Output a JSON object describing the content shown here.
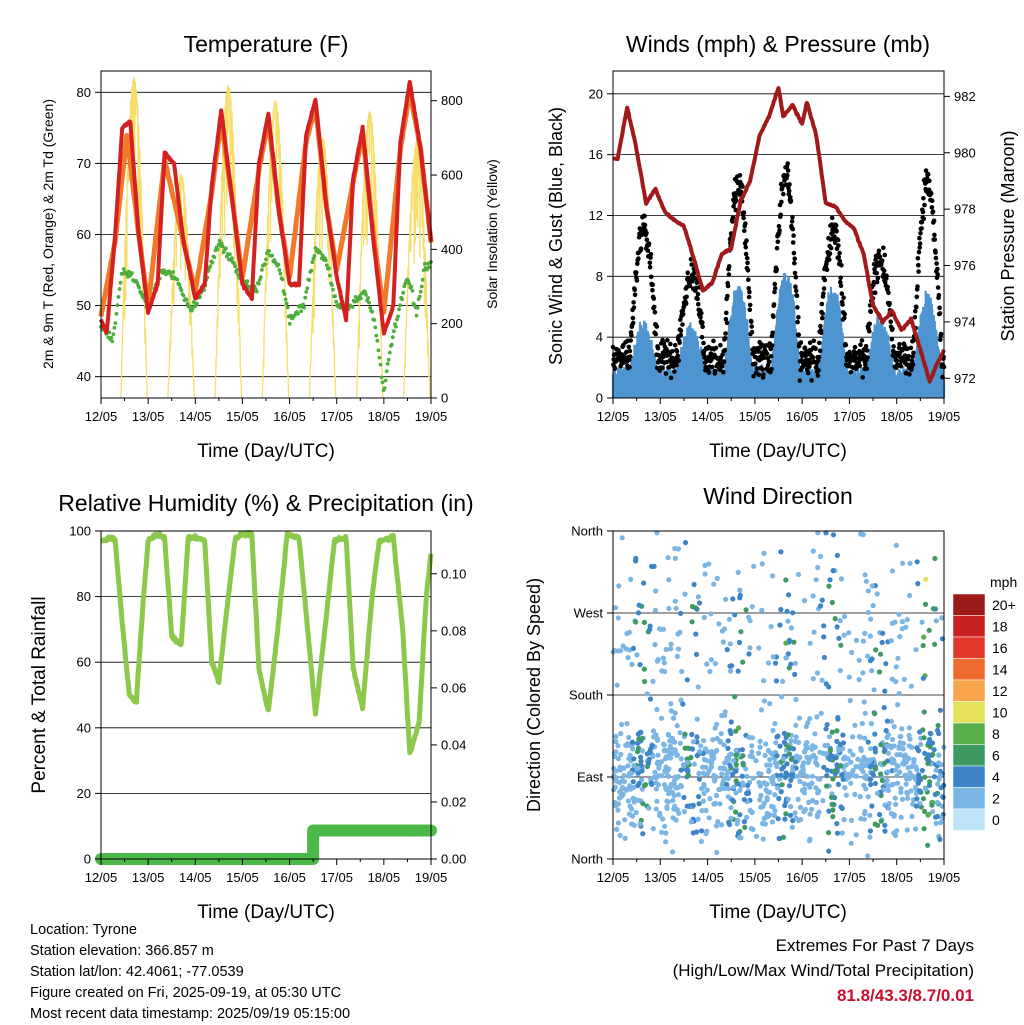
{
  "info": {
    "location": "Location: Tyrone",
    "elevation": "Station elevation: 366.857 m",
    "latlon": "Station lat/lon: 42.4061; -77.0539",
    "created": "Figure created on Fri, 2025-09-19, at 05:30 UTC",
    "recent": "Most recent data timestamp: 2025/09/19 05:15:00"
  },
  "extremes": {
    "heading": "Extremes For Past 7 Days",
    "subheading": "(High/Low/Max Wind/Total Precipitation)",
    "values": "81.8/43.3/8.7/0.01"
  },
  "colors": {
    "temp2m": "#d42020",
    "temp9m": "#f07a2a",
    "dewpoint": "#4caf3c",
    "solar": "#f5de6a",
    "gust": "#000000",
    "wind": "#4d94d0",
    "pressure": "#a01a1a",
    "rh": "#8cc84b",
    "precip": "#4cb84a"
  },
  "speed_scale": {
    "title": "mph",
    "labels": [
      "20+",
      "18",
      "16",
      "14",
      "12",
      "10",
      "8",
      "6",
      "4",
      "2",
      "0"
    ],
    "colors": [
      "#9c1a1a",
      "#c8201f",
      "#e0382a",
      "#f06a30",
      "#f9a54b",
      "#e6df5a",
      "#5aaf4d",
      "#3e9a62",
      "#3d85c6",
      "#7ab5e4",
      "#bfe3f7"
    ]
  },
  "chart_data": [
    {
      "type": "line",
      "title": "Temperature (F)",
      "xlabel": "Time (Day/UTC)",
      "ylabel": "2m & 9m T (Red, Orange) & 2m Td (Green)",
      "y2label": "Solar Insolation (Yellow)",
      "x_ticks": [
        "12/05",
        "13/05",
        "14/05",
        "15/05",
        "16/05",
        "17/05",
        "18/05",
        "19/05"
      ],
      "yticks": [
        40,
        50,
        60,
        70,
        80
      ],
      "ylim": [
        37,
        83
      ],
      "y2ticks": [
        0,
        200,
        400,
        600,
        800
      ],
      "y2lim": [
        0,
        880
      ],
      "grid": true,
      "series": [
        {
          "key": "t2m",
          "x": [
            0,
            0.12,
            0.3,
            0.45,
            0.62,
            0.8,
            1.0,
            1.2,
            1.35,
            1.55,
            1.75,
            2.0,
            2.2,
            2.35,
            2.55,
            2.78,
            3.0,
            3.2,
            3.35,
            3.55,
            3.78,
            4.0,
            4.2,
            4.35,
            4.55,
            4.78,
            5.0,
            5.2,
            5.35,
            5.55,
            5.78,
            6.0,
            6.2,
            6.35,
            6.55,
            6.78,
            7.0
          ],
          "y": [
            48,
            46,
            60,
            75,
            76,
            60,
            49,
            53,
            71.5,
            70,
            59,
            51,
            53,
            67,
            77.5,
            65,
            53,
            51,
            70,
            77,
            63,
            53,
            53,
            74,
            79,
            64,
            54,
            48,
            68,
            75,
            59,
            46,
            50,
            73,
            81.5,
            72,
            59
          ]
        },
        {
          "key": "t9m",
          "x": [
            0,
            0.3,
            0.55,
            0.8,
            1.0,
            1.35,
            1.75,
            2.0,
            2.35,
            2.55,
            2.78,
            3.0,
            3.35,
            3.55,
            3.78,
            4.0,
            4.35,
            4.55,
            4.78,
            5.0,
            5.35,
            5.55,
            5.78,
            6.0,
            6.35,
            6.55,
            6.78,
            7.0
          ],
          "y": [
            48.5,
            59,
            74,
            60,
            50,
            70.5,
            59,
            52,
            66,
            76,
            65,
            54,
            69,
            76,
            63,
            54,
            73,
            78,
            64,
            55,
            67.5,
            74,
            60,
            49,
            72,
            80,
            72,
            59
          ]
        },
        {
          "key": "td",
          "x": [
            0,
            0.25,
            0.45,
            0.7,
            1.0,
            1.3,
            1.6,
            1.9,
            2.2,
            2.5,
            2.8,
            3.0,
            3.3,
            3.55,
            3.8,
            4.0,
            4.3,
            4.55,
            4.8,
            5.0,
            5.3,
            5.6,
            5.8,
            6.0,
            6.2,
            6.5,
            6.7,
            6.85,
            7.0
          ],
          "y": [
            47,
            45,
            55,
            54,
            50,
            55,
            54,
            49,
            53,
            59,
            56,
            53,
            52,
            58,
            55,
            48,
            50,
            58,
            56,
            50,
            50,
            52,
            48,
            38,
            46,
            54,
            49,
            55,
            56
          ]
        },
        {
          "key": "solar",
          "peaks": [
            {
              "day": 0,
              "peak": 860
            },
            {
              "day": 1,
              "peak": 600
            },
            {
              "day": 2,
              "peak": 840
            },
            {
              "day": 3,
              "peak": 800
            },
            {
              "day": 4,
              "peak": 700
            },
            {
              "day": 5,
              "peak": 770
            },
            {
              "day": 6,
              "peak": 690
            }
          ]
        }
      ]
    },
    {
      "type": "scatter",
      "title": "Winds (mph) & Pressure (mb)",
      "xlabel": "Time (Day/UTC)",
      "ylabel": "Sonic Wind & Gust (Blue, Black)",
      "y2label": "Station Pressure (Maroon)",
      "x_ticks": [
        "12/05",
        "13/05",
        "14/05",
        "15/05",
        "16/05",
        "17/05",
        "18/05",
        "19/05"
      ],
      "yticks": [
        0,
        4,
        8,
        12,
        16,
        20
      ],
      "ylim": [
        0,
        21.5
      ],
      "y2ticks": [
        972,
        974,
        976,
        978,
        980,
        982
      ],
      "y2lim": [
        971.3,
        982.9
      ],
      "grid": true,
      "wind_envelope": {
        "x": [
          0,
          1,
          2,
          3,
          4,
          5,
          6,
          7
        ],
        "daily_peak_wind": [
          4.5,
          4.5,
          7,
          8,
          7,
          5,
          6.5,
          3
        ],
        "daily_peak_gust": [
          11,
          8,
          14,
          14.5,
          11,
          9,
          14,
          4
        ]
      },
      "pressure": {
        "x": [
          0,
          0.1,
          0.3,
          0.5,
          0.7,
          0.9,
          1.1,
          1.3,
          1.5,
          1.7,
          1.9,
          2.1,
          2.3,
          2.5,
          2.7,
          2.9,
          3.1,
          3.3,
          3.5,
          3.6,
          3.8,
          4.0,
          4.1,
          4.3,
          4.5,
          4.7,
          4.9,
          5.1,
          5.3,
          5.5,
          5.7,
          5.9,
          6.1,
          6.3,
          6.5,
          6.7,
          6.85,
          7.0
        ],
        "y": [
          979.8,
          979.8,
          981.6,
          980.1,
          978.2,
          978.7,
          977.9,
          977.6,
          977.4,
          976.3,
          975.1,
          975.4,
          976.4,
          976.6,
          978.3,
          979.0,
          980.6,
          981.3,
          982.3,
          981.3,
          981.7,
          981.0,
          981.8,
          980.6,
          978.2,
          978.1,
          977.6,
          977.3,
          976.4,
          974.6,
          974.0,
          974.4,
          973.7,
          974.1,
          973.0,
          971.9,
          972.5,
          973.0
        ]
      }
    },
    {
      "type": "line",
      "title": "Relative Humidity (%) & Precipitation (in)",
      "xlabel": "Time (Day/UTC)",
      "ylabel": "Percent & Total Rainfall",
      "x_ticks": [
        "12/05",
        "13/05",
        "14/05",
        "15/05",
        "16/05",
        "17/05",
        "18/05",
        "19/05"
      ],
      "yticks": [
        0,
        20,
        40,
        60,
        80,
        100
      ],
      "ylim": [
        0,
        100
      ],
      "y2ticks": [
        "0.00",
        "0.02",
        "0.04",
        "0.06",
        "0.08",
        "0.10"
      ],
      "y2lim": [
        0,
        0.115
      ],
      "grid": true,
      "series": [
        {
          "key": "rh",
          "x": [
            0,
            0.2,
            0.3,
            0.45,
            0.6,
            0.75,
            0.9,
            1.0,
            1.2,
            1.35,
            1.5,
            1.7,
            1.85,
            2.0,
            2.2,
            2.35,
            2.5,
            2.7,
            2.85,
            3.0,
            3.2,
            3.35,
            3.55,
            3.75,
            3.95,
            4.2,
            4.35,
            4.55,
            4.75,
            4.95,
            5.2,
            5.35,
            5.55,
            5.75,
            5.9,
            6.2,
            6.4,
            6.55,
            6.75,
            6.9,
            7.0
          ],
          "y": [
            97,
            98,
            97,
            72,
            50,
            48,
            80,
            97,
            99,
            98,
            68,
            65,
            98,
            98,
            97,
            60,
            54,
            80,
            98,
            99,
            99,
            58,
            45,
            70,
            99,
            98,
            75,
            44,
            70,
            97,
            98,
            58,
            46,
            80,
            97,
            98,
            70,
            32,
            42,
            80,
            93
          ]
        },
        {
          "key": "precip",
          "x": [
            0,
            4.5,
            4.5,
            7.0
          ],
          "y": [
            0.0,
            0.0,
            0.01,
            0.01
          ]
        }
      ]
    },
    {
      "type": "scatter",
      "title": "Wind Direction",
      "xlabel": "Time (Day/UTC)",
      "ylabel": "Direction (Colored By Speed)",
      "x_ticks": [
        "12/05",
        "13/05",
        "14/05",
        "15/05",
        "16/05",
        "17/05",
        "18/05",
        "19/05"
      ],
      "y_ticks": [
        "North",
        "East",
        "South",
        "West",
        "North"
      ],
      "ylim": [
        0,
        360
      ],
      "grid": true,
      "direction_bands": [
        {
          "center_deg": 100,
          "spread": 55,
          "share": 0.65
        },
        {
          "center_deg": 40,
          "spread": 35,
          "share": 0.12
        },
        {
          "center_deg": 250,
          "spread": 110,
          "share": 0.23
        }
      ]
    }
  ]
}
